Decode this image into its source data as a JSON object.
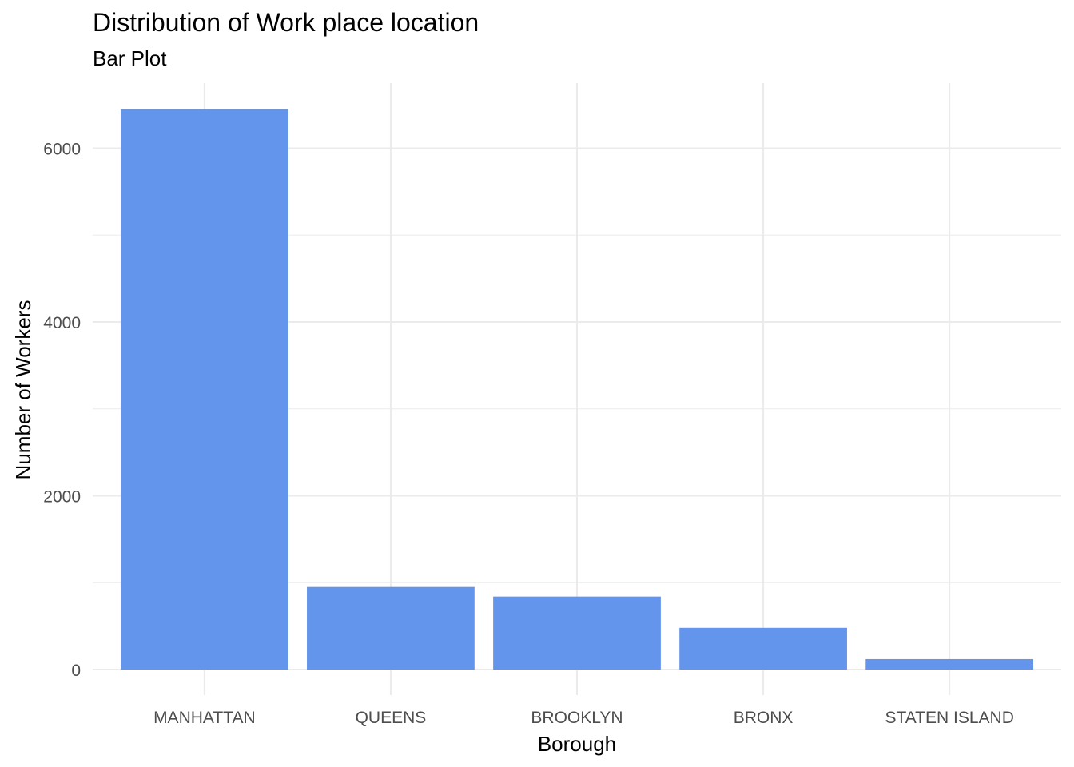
{
  "chart_data": {
    "type": "bar",
    "title": "Distribution of Work place location",
    "subtitle": "Bar Plot",
    "xlabel": "Borough",
    "ylabel": "Number of Workers",
    "categories": [
      "MANHATTAN",
      "QUEENS",
      "BROOKLYN",
      "BRONX",
      "STATEN ISLAND"
    ],
    "values": [
      6450,
      950,
      840,
      480,
      120
    ],
    "ylim": [
      0,
      6750
    ],
    "yticks": [
      0,
      2000,
      4000,
      6000
    ],
    "grid": true,
    "legend": "none",
    "bar_color": "#6495ED",
    "grid_color": "#EBEBEB",
    "tick_label_color": "#4D4D4D"
  }
}
